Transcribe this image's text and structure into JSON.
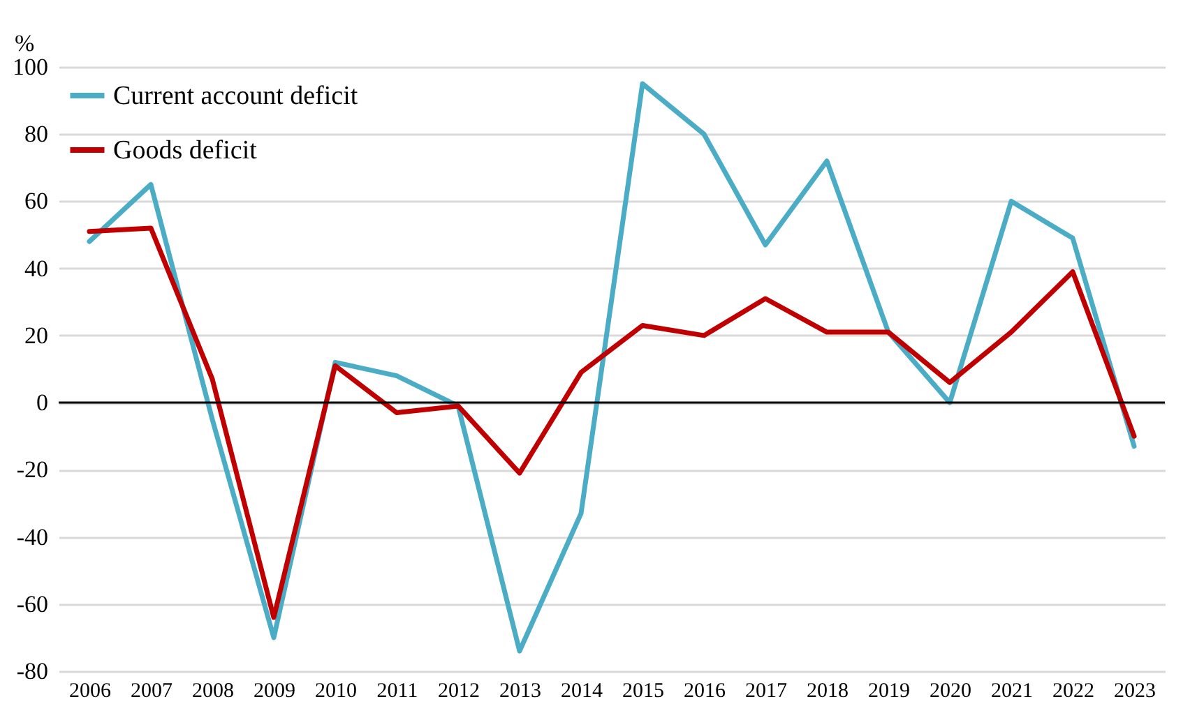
{
  "chart_data": {
    "type": "line",
    "ylabel": "%",
    "categories": [
      "2006",
      "2007",
      "2008",
      "2009",
      "2010",
      "2011",
      "2012",
      "2013",
      "2014",
      "2015",
      "2016",
      "2017",
      "2018",
      "2019",
      "2020",
      "2021",
      "2022",
      "2023"
    ],
    "series": [
      {
        "name": "Current account deficit",
        "color": "#4bacc6",
        "values": [
          48,
          65,
          -5,
          -70,
          12,
          8,
          -1,
          -74,
          -33,
          95,
          80,
          47,
          72,
          21,
          0,
          60,
          49,
          -13
        ]
      },
      {
        "name": "Goods deficit",
        "color": "#c00000",
        "values": [
          51,
          52,
          7,
          -64,
          11,
          -3,
          -1,
          -21,
          9,
          23,
          20,
          31,
          21,
          21,
          6,
          21,
          39,
          -10
        ]
      }
    ],
    "ylim": [
      -80,
      100
    ],
    "yticks": [
      -80,
      -60,
      -40,
      -20,
      0,
      20,
      40,
      60,
      80,
      100
    ],
    "grid": "y",
    "legend": "top left",
    "line_style": "solid",
    "ref_lines": [
      {
        "axis": "y",
        "value": 0,
        "color": "#000000"
      }
    ]
  }
}
